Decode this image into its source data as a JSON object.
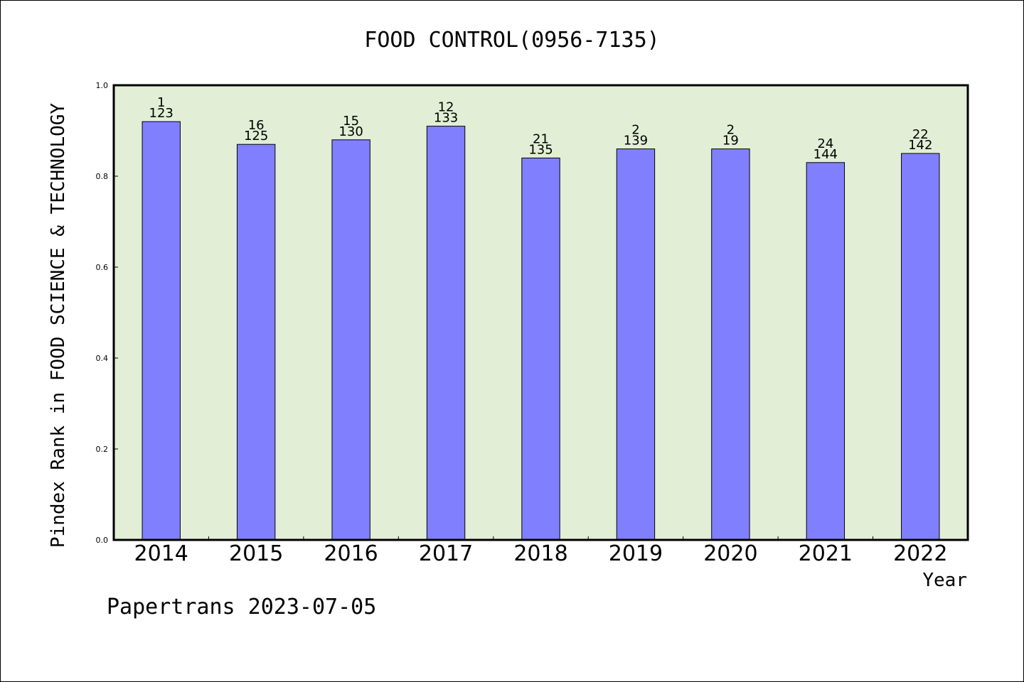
{
  "chart_data": {
    "type": "bar",
    "title": "FOOD CONTROL(0956-7135)",
    "xlabel": "Year",
    "ylabel": "Pindex Rank in FOOD SCIENCE & TECHNOLOGY",
    "ylim": [
      0,
      1.0
    ],
    "yticks": [
      "0.0",
      "0.2",
      "0.4",
      "0.6",
      "0.8",
      "1.0"
    ],
    "grid": false,
    "categories": [
      "2014",
      "2015",
      "2016",
      "2017",
      "2018",
      "2019",
      "2020",
      "2021",
      "2022"
    ],
    "values": [
      0.92,
      0.87,
      0.88,
      0.91,
      0.84,
      0.86,
      0.86,
      0.83,
      0.85
    ],
    "labels_top": [
      "1",
      "16",
      "15",
      "12",
      "21",
      "2",
      "2",
      "24",
      "22"
    ],
    "labels_bottom": [
      "123",
      "125",
      "130",
      "133",
      "135",
      "139",
      "19",
      "144",
      "142"
    ],
    "colors": {
      "bar": "#8080ff",
      "plot_bg": "#e2efd6"
    }
  },
  "footer": {
    "credit": "Papertrans 2023-07-05"
  }
}
